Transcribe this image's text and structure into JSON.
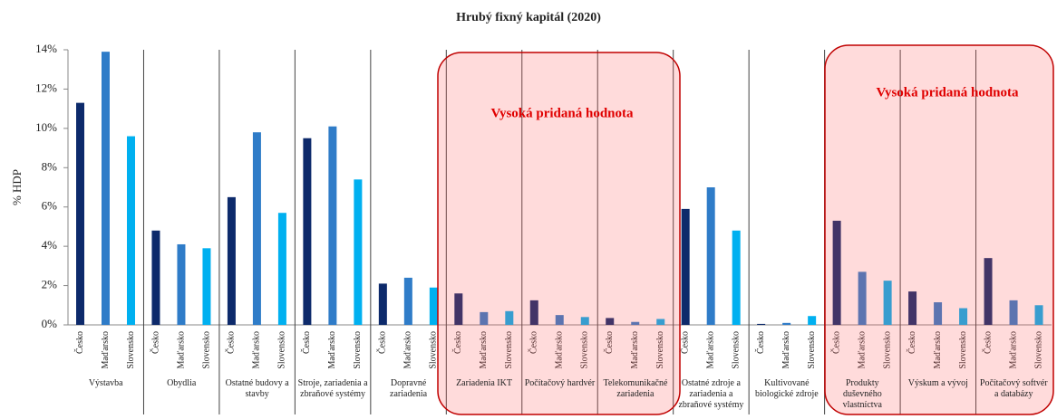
{
  "chart_data": {
    "type": "bar",
    "title": "Hrubý fixný kapitál (2020)",
    "y_label": "% HDP",
    "categories": [
      "Výstavba",
      "Obydlia",
      "Ostatné budovy a stavby",
      "Stroje, zariadenia a zbraňové systémy",
      "Dopravné zariadenia",
      "Zariadenia IKT",
      "Počítačový hardvér",
      "Telekomunikačné zariadenia",
      "Ostatné zdroje a zariadenia a zbraňové systémy",
      "Kultivované biologické zdroje",
      "Produkty duševného vlastníctva",
      "Výskum a vývoj",
      "Počítačový softvér a databázy"
    ],
    "series": [
      {
        "name": "Česko",
        "color": "#0d2a6b",
        "values": [
          11.3,
          4.8,
          6.5,
          9.5,
          2.1,
          1.6,
          1.25,
          0.35,
          5.9,
          0.05,
          5.3,
          1.7,
          3.4
        ]
      },
      {
        "name": "Maďarsko",
        "color": "#2f7cc8",
        "values": [
          13.9,
          4.1,
          9.8,
          10.1,
          2.4,
          0.65,
          0.5,
          0.15,
          7.0,
          0.1,
          2.7,
          1.15,
          1.25
        ]
      },
      {
        "name": "Slovensko",
        "color": "#00b0f0",
        "values": [
          9.6,
          3.9,
          5.7,
          7.4,
          1.9,
          0.7,
          0.4,
          0.3,
          4.8,
          0.45,
          2.25,
          0.85,
          1.0
        ]
      }
    ],
    "ylim": [
      0,
      14
    ],
    "yticks": [
      {
        "value": 0,
        "label": "0%"
      },
      {
        "value": 2,
        "label": "2%"
      },
      {
        "value": 4,
        "label": "4%"
      },
      {
        "value": 6,
        "label": "6%"
      },
      {
        "value": 8,
        "label": "8%"
      },
      {
        "value": 10,
        "label": "10%"
      },
      {
        "value": 12,
        "label": "12%"
      },
      {
        "value": 14,
        "label": "14%"
      }
    ],
    "annotations": [
      {
        "text": "Vysoká pridaná hodnota"
      },
      {
        "text": "Vysoká pridaná hodnota"
      }
    ]
  }
}
